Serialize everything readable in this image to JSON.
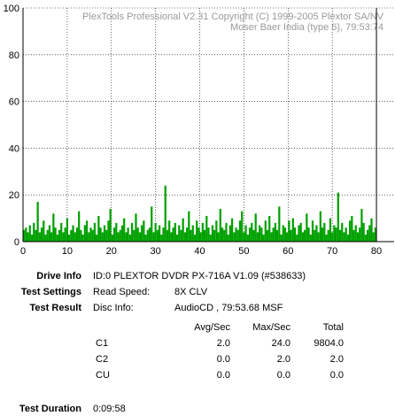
{
  "chart_data": {
    "type": "bar",
    "watermark": [
      "PlexTools Professional V2.31 Copyright (C) 1999-2005 Plextor SA/NV",
      "Moser Baer India  (type 6), 79:53:74"
    ],
    "xlim": [
      0,
      84
    ],
    "ylim": [
      0,
      100
    ],
    "x_ticks": [
      "0",
      "10",
      "20",
      "30",
      "40",
      "50",
      "60",
      "70",
      "80"
    ],
    "y_ticks": [
      "0",
      "20",
      "40",
      "60",
      "80",
      "100"
    ],
    "end_marker_x": 80,
    "series": [
      {
        "values": [
          5,
          6,
          4,
          7,
          3,
          8,
          5,
          17,
          4,
          6,
          9,
          3,
          5,
          7,
          4,
          12,
          6,
          3,
          5,
          8,
          4,
          6,
          10,
          3,
          5,
          7,
          4,
          6,
          13,
          5,
          3,
          7,
          9,
          4,
          6,
          5,
          8,
          3,
          11,
          6,
          4,
          7,
          5,
          9,
          14,
          3,
          6,
          8,
          4,
          5,
          7,
          10,
          4,
          6,
          3,
          8,
          5,
          12,
          6,
          4,
          7,
          9,
          3,
          5,
          6,
          15,
          4,
          8,
          5,
          7,
          3,
          6,
          24,
          5,
          9,
          4,
          6,
          8,
          3,
          7,
          5,
          10,
          4,
          6,
          13,
          5,
          7,
          3,
          9,
          6,
          4,
          8,
          5,
          11,
          6,
          3,
          7,
          5,
          9,
          4,
          14,
          6,
          5,
          8,
          3,
          7,
          10,
          4,
          6,
          5,
          9,
          13,
          4,
          7,
          3,
          6,
          8,
          5,
          12,
          4,
          7,
          6,
          3,
          9,
          5,
          11,
          4,
          6,
          8,
          5,
          15,
          3,
          7,
          6,
          4,
          9,
          5,
          10,
          6,
          3,
          7,
          8,
          4,
          5,
          12,
          6,
          3,
          9,
          5,
          7,
          4,
          13,
          6,
          8,
          3,
          5,
          10,
          4,
          7,
          6,
          21,
          5,
          8,
          4,
          6,
          3,
          9,
          11,
          5,
          7,
          4,
          6,
          14,
          8,
          3,
          5,
          7,
          10,
          4,
          6
        ],
        "color": "#00a000"
      }
    ]
  },
  "drive_info": {
    "label": "Drive Info",
    "value": "ID:0 PLEXTOR DVDR PX-716A V1.09 (#538633)"
  },
  "test_settings": {
    "label": "Test Settings",
    "key": "Read Speed:",
    "value": "8X CLV"
  },
  "test_result": {
    "label": "Test Result",
    "key": "Disc Info:",
    "value": "AudioCD , 79:53.68 MSF"
  },
  "table": {
    "headers": [
      "Avg/Sec",
      "Max/Sec",
      "Total"
    ],
    "rows": [
      {
        "name": "C1",
        "avg": "2.0",
        "max": "24.0",
        "total": "9804.0"
      },
      {
        "name": "C2",
        "avg": "0.0",
        "max": "2.0",
        "total": "2.0"
      },
      {
        "name": "CU",
        "avg": "0.0",
        "max": "0.0",
        "total": "0.0"
      }
    ]
  },
  "test_duration": {
    "label": "Test Duration",
    "value": "0:09:58"
  }
}
